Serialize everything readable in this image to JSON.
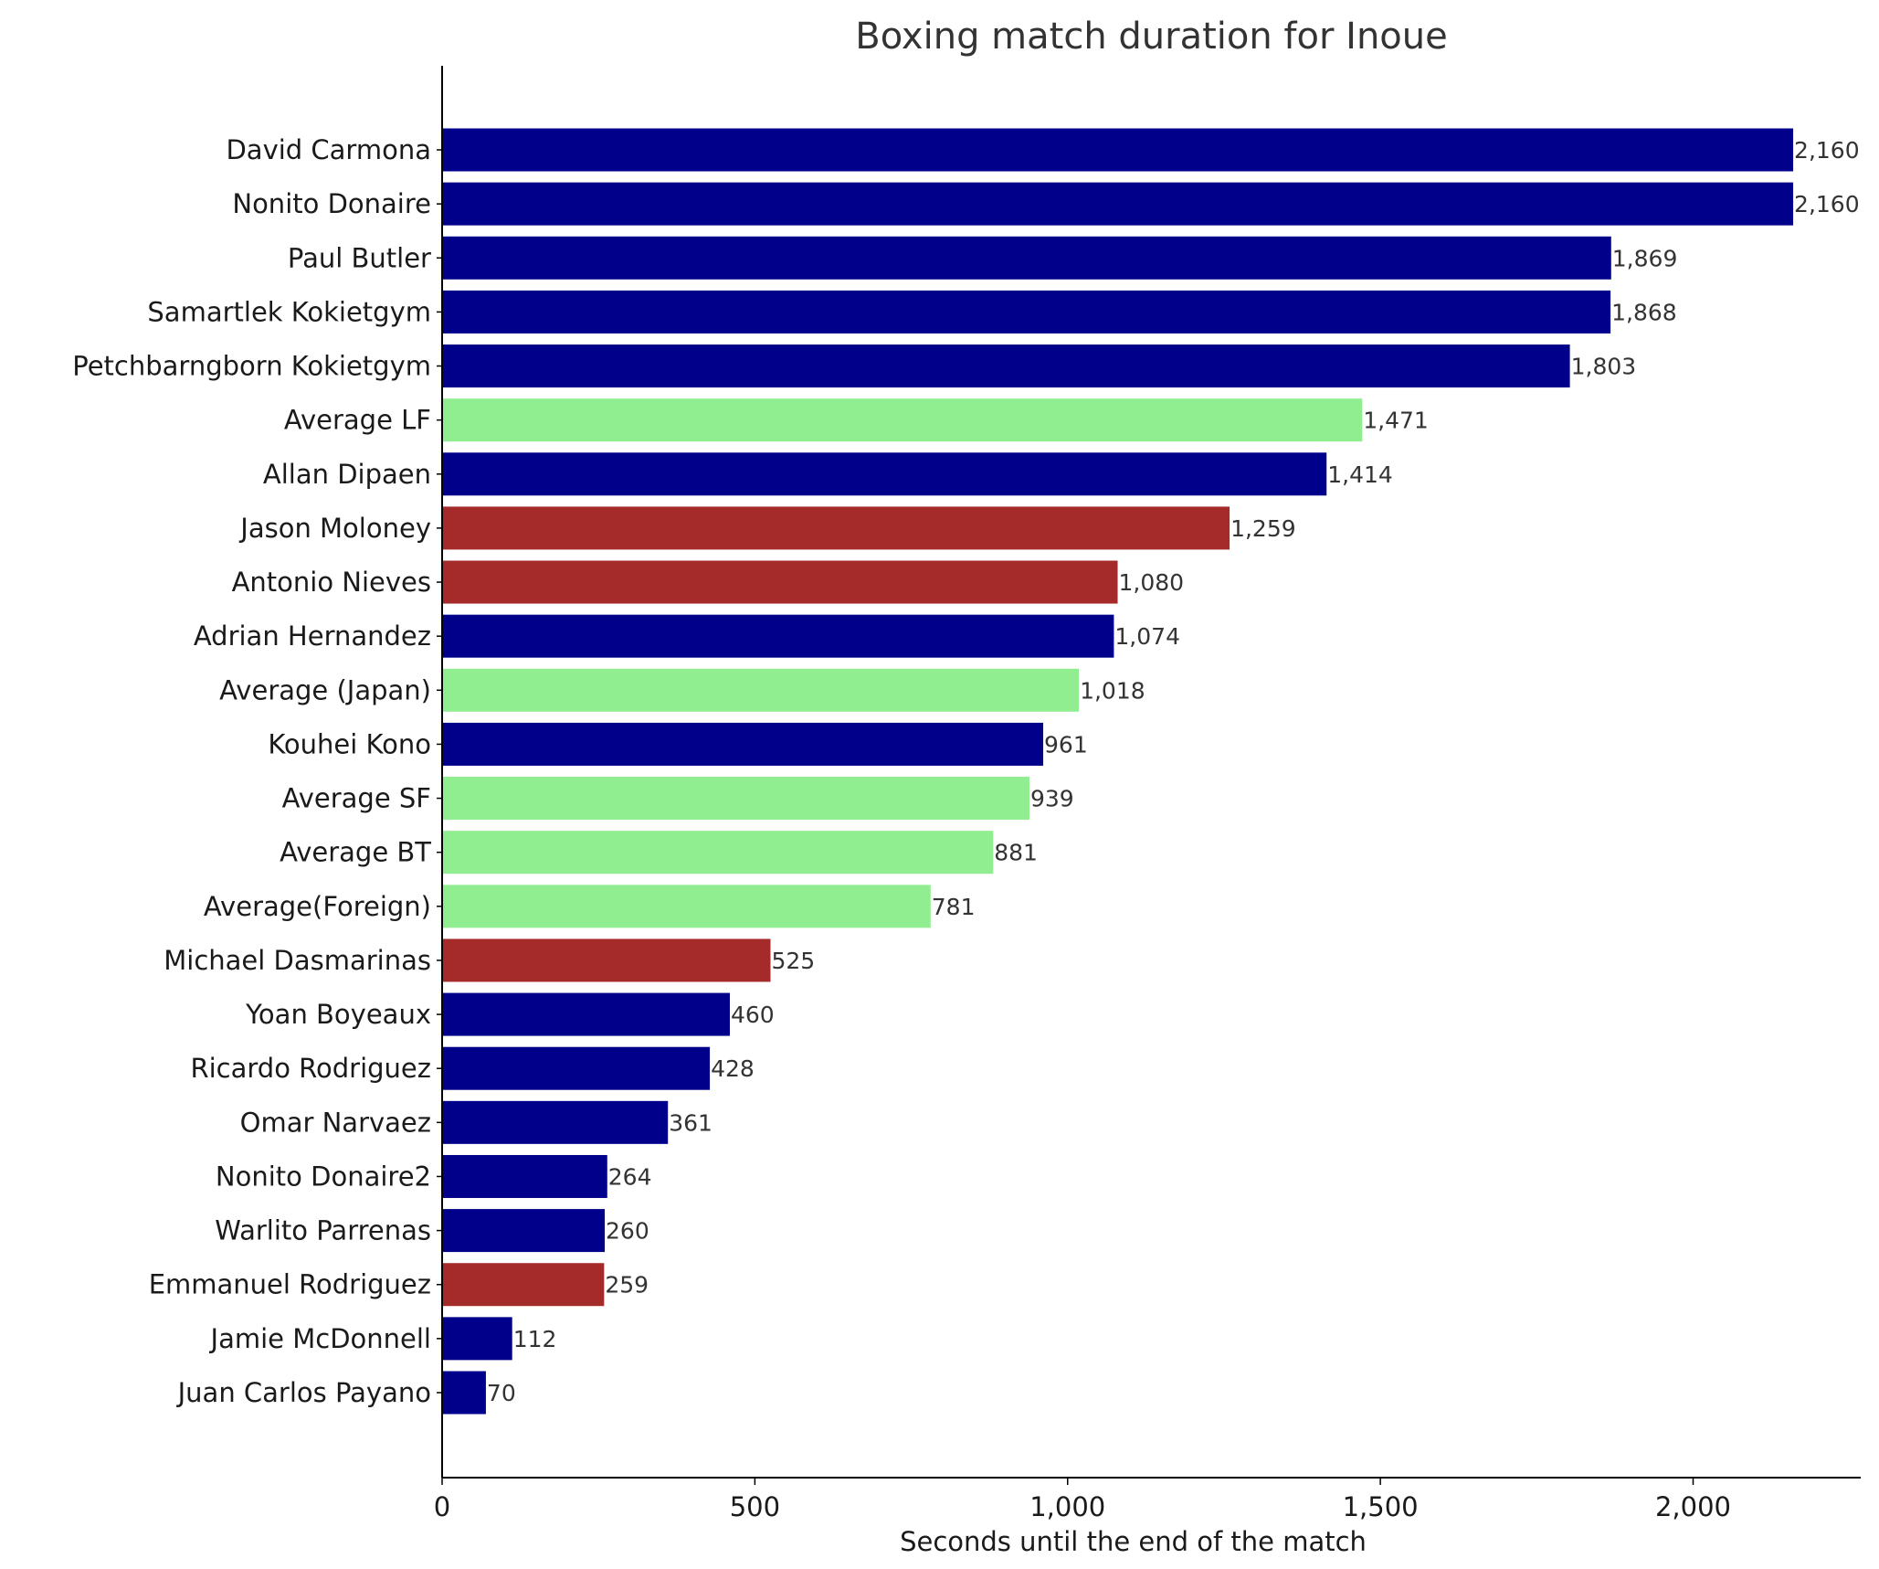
{
  "chart_data": {
    "type": "bar",
    "orientation": "horizontal",
    "title": "Boxing match duration for Inoue",
    "xlabel": "Seconds until the end of the match",
    "ylabel": "",
    "xlim": [
      0,
      2268
    ],
    "xticks": [
      0,
      500,
      1000,
      1500,
      2000
    ],
    "xtick_labels": [
      "0",
      "500",
      "1,000",
      "1,500",
      "2,000"
    ],
    "grid": false,
    "colors": {
      "opponent": "#00008b",
      "average": "#90ee90",
      "highlight": "#a52a2a"
    },
    "bars": [
      {
        "label": "David Carmona",
        "value": 2160,
        "value_label": "2,160",
        "group": "opponent"
      },
      {
        "label": "Nonito Donaire",
        "value": 2160,
        "value_label": "2,160",
        "group": "opponent"
      },
      {
        "label": "Paul Butler",
        "value": 1869,
        "value_label": "1,869",
        "group": "opponent"
      },
      {
        "label": "Samartlek Kokietgym",
        "value": 1868,
        "value_label": "1,868",
        "group": "opponent"
      },
      {
        "label": "Petchbarngborn Kokietgym",
        "value": 1803,
        "value_label": "1,803",
        "group": "opponent"
      },
      {
        "label": "Average LF",
        "value": 1471,
        "value_label": "1,471",
        "group": "average"
      },
      {
        "label": "Allan Dipaen",
        "value": 1414,
        "value_label": "1,414",
        "group": "opponent"
      },
      {
        "label": "Jason Moloney",
        "value": 1259,
        "value_label": "1,259",
        "group": "highlight"
      },
      {
        "label": "Antonio Nieves",
        "value": 1080,
        "value_label": "1,080",
        "group": "highlight"
      },
      {
        "label": "Adrian Hernandez",
        "value": 1074,
        "value_label": "1,074",
        "group": "opponent"
      },
      {
        "label": "Average (Japan)",
        "value": 1018,
        "value_label": "1,018",
        "group": "average"
      },
      {
        "label": "Kouhei Kono",
        "value": 961,
        "value_label": "961",
        "group": "opponent"
      },
      {
        "label": "Average SF",
        "value": 939,
        "value_label": "939",
        "group": "average"
      },
      {
        "label": "Average BT",
        "value": 881,
        "value_label": "881",
        "group": "average"
      },
      {
        "label": "Average(Foreign)",
        "value": 781,
        "value_label": "781",
        "group": "average"
      },
      {
        "label": "Michael Dasmarinas",
        "value": 525,
        "value_label": "525",
        "group": "highlight"
      },
      {
        "label": "Yoan Boyeaux",
        "value": 460,
        "value_label": "460",
        "group": "opponent"
      },
      {
        "label": "Ricardo Rodriguez",
        "value": 428,
        "value_label": "428",
        "group": "opponent"
      },
      {
        "label": "Omar Narvaez",
        "value": 361,
        "value_label": "361",
        "group": "opponent"
      },
      {
        "label": "Nonito Donaire2",
        "value": 264,
        "value_label": "264",
        "group": "opponent"
      },
      {
        "label": "Warlito Parrenas",
        "value": 260,
        "value_label": "260",
        "group": "opponent"
      },
      {
        "label": "Emmanuel Rodriguez",
        "value": 259,
        "value_label": "259",
        "group": "highlight"
      },
      {
        "label": "Jamie McDonnell",
        "value": 112,
        "value_label": "112",
        "group": "opponent"
      },
      {
        "label": "Juan Carlos Payano",
        "value": 70,
        "value_label": "70",
        "group": "opponent"
      }
    ]
  }
}
